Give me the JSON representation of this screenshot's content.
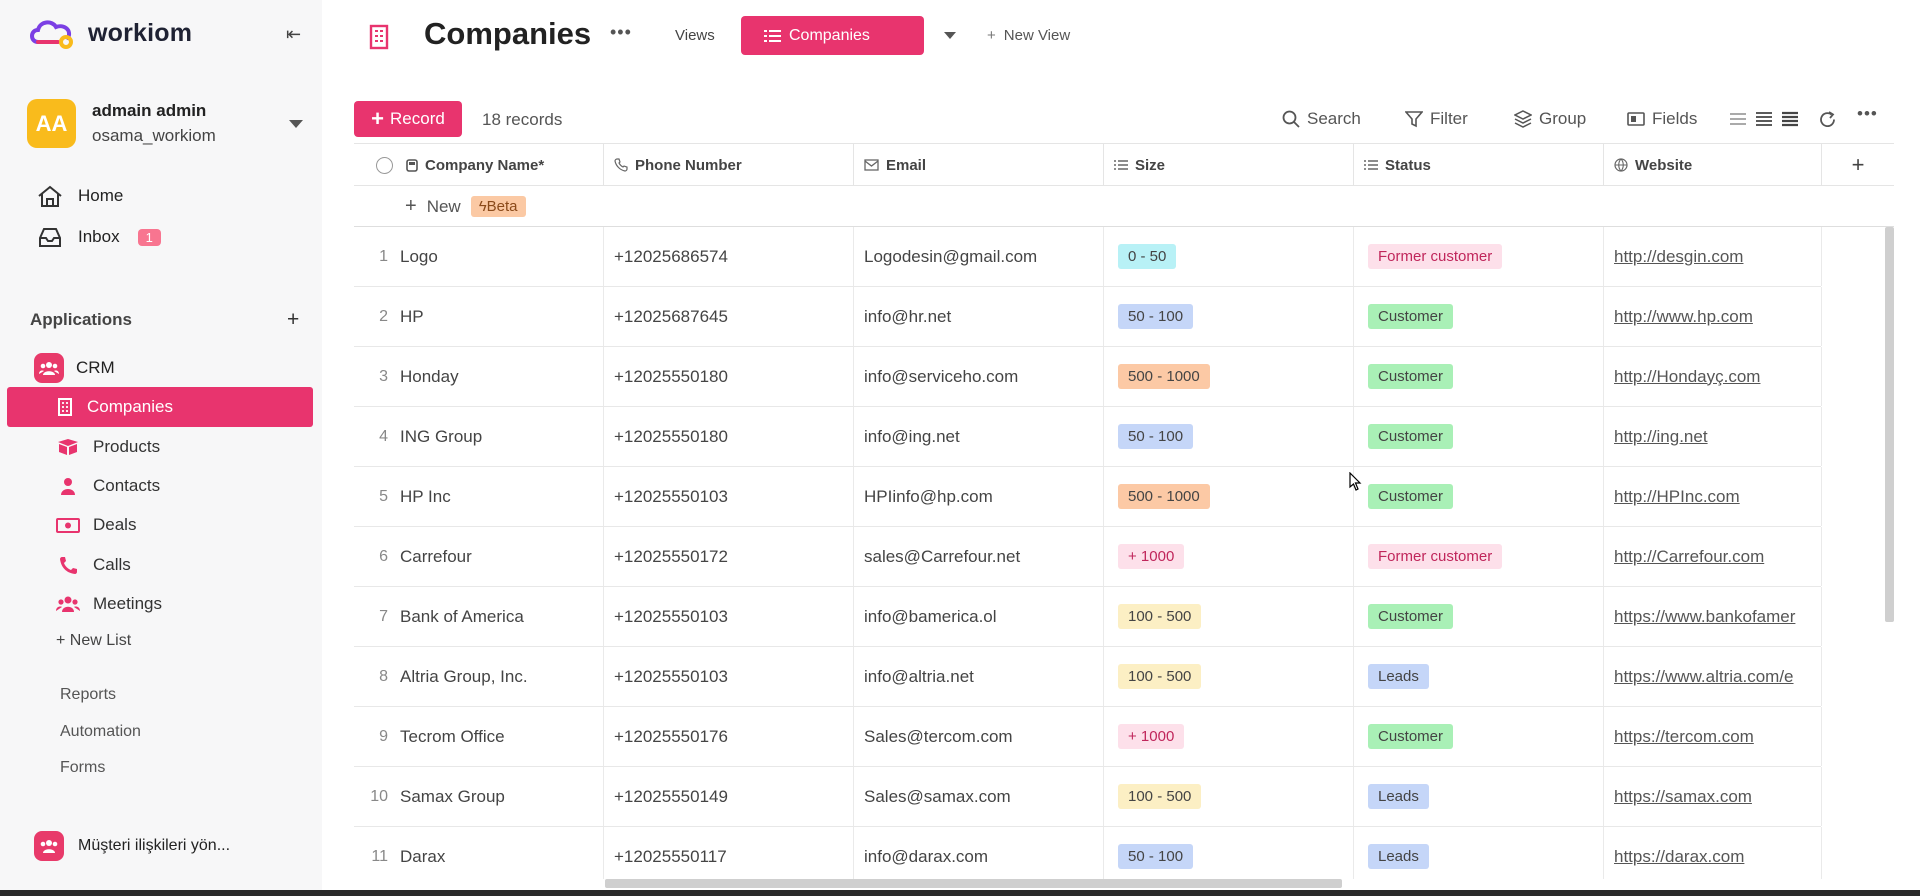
{
  "app": {
    "name": "workiom"
  },
  "user": {
    "initials": "AA",
    "name": "admain admin",
    "workspace": "osama_workiom"
  },
  "nav": {
    "home": "Home",
    "inbox": "Inbox",
    "inbox_count": "1"
  },
  "applications": {
    "heading": "Applications",
    "crm": "CRM",
    "active": "Companies",
    "items": [
      "Products",
      "Contacts",
      "Deals",
      "Calls",
      "Meetings"
    ],
    "new_list": "+ New List"
  },
  "side_links": [
    "Reports",
    "Automation",
    "Forms"
  ],
  "bottom_app": "Müşteri ilişkileri yön...",
  "page": {
    "title": "Companies",
    "views_label": "Views",
    "view_name": "Companies",
    "new_view": "New View"
  },
  "toolbar": {
    "record_label": "Record",
    "records_count": "18 records",
    "search": "Search",
    "filter": "Filter",
    "group": "Group",
    "fields": "Fields"
  },
  "table": {
    "columns": [
      "Company Name*",
      "Phone Number",
      "Email",
      "Size",
      "Status",
      "Website"
    ],
    "new_label": "New",
    "beta_label": "Beta",
    "rows": [
      {
        "n": "1",
        "name": "Logo",
        "phone": "+12025686574",
        "email": "Logodesin@gmail.com",
        "size": "0 - 50",
        "status": "Former customer",
        "website": "http://desgin.com"
      },
      {
        "n": "2",
        "name": "HP",
        "phone": "+12025687645",
        "email": "info@hr.net",
        "size": "50 - 100",
        "status": "Customer",
        "website": "http://www.hp.com"
      },
      {
        "n": "3",
        "name": "Honday",
        "phone": "+12025550180",
        "email": "info@serviceho.com",
        "size": "500 - 1000",
        "status": "Customer",
        "website": "http://Hondayç.com"
      },
      {
        "n": "4",
        "name": "ING Group",
        "phone": "+12025550180",
        "email": "info@ing.net",
        "size": "50 - 100",
        "status": "Customer",
        "website": "http://ing.net"
      },
      {
        "n": "5",
        "name": "HP Inc",
        "phone": "+12025550103",
        "email": "HPIinfo@hp.com",
        "size": "500 - 1000",
        "status": "Customer",
        "website": "http://HPInc.com"
      },
      {
        "n": "6",
        "name": "Carrefour",
        "phone": "+12025550172",
        "email": "sales@Carrefour.net",
        "size": "+ 1000",
        "status": "Former customer",
        "website": "http://Carrefour.com"
      },
      {
        "n": "7",
        "name": "Bank of America",
        "phone": "+12025550103",
        "email": "info@bamerica.ol",
        "size": "100 - 500",
        "status": "Customer",
        "website": "https://www.bankofamer"
      },
      {
        "n": "8",
        "name": "Altria Group, Inc.",
        "phone": "+12025550103",
        "email": "info@altria.net",
        "size": "100 - 500",
        "status": "Leads",
        "website": "https://www.altria.com/e"
      },
      {
        "n": "9",
        "name": "Tecrom Office",
        "phone": "+12025550176",
        "email": "Sales@tercom.com",
        "size": "+ 1000",
        "status": "Customer",
        "website": "https://tercom.com"
      },
      {
        "n": "10",
        "name": "Samax Group",
        "phone": "+12025550149",
        "email": "Sales@samax.com",
        "size": "100 - 500",
        "status": "Leads",
        "website": "https://samax.com"
      },
      {
        "n": "11",
        "name": "Darax",
        "phone": "+12025550117",
        "email": "info@darax.com",
        "size": "50 - 100",
        "status": "Leads",
        "website": "https://darax.com"
      }
    ]
  },
  "colors": {
    "accent": "#e8346e",
    "size": {
      "0 - 50": "#b8f1f6",
      "50 - 100": "#c5d6f8",
      "500 - 1000": "#fcc9a5",
      "+ 1000": "#fde0ea",
      "100 - 500": "#fcefc4"
    },
    "status": {
      "Former customer": "#fde0ea",
      "Customer": "#a9f0b6",
      "Leads": "#c5d6f8"
    }
  }
}
